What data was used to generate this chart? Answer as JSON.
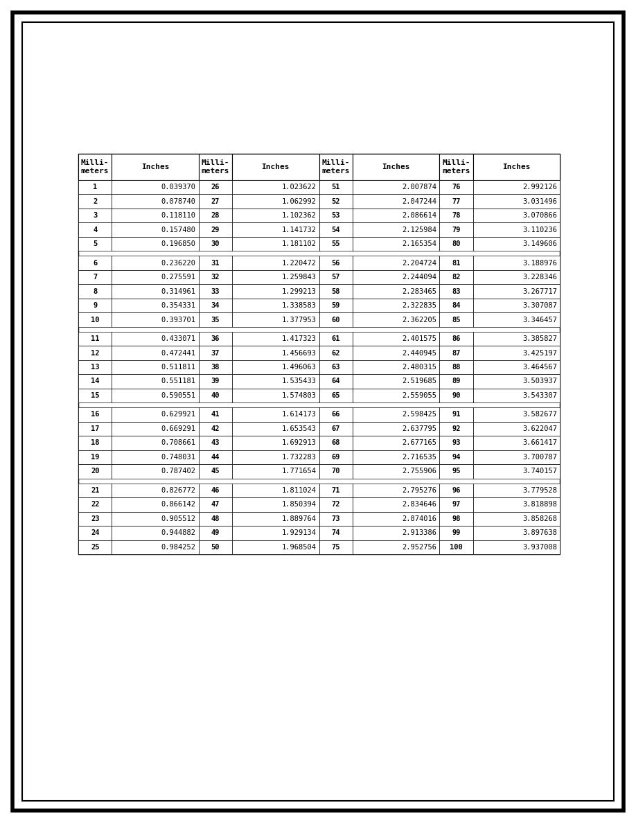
{
  "groups": [
    {
      "mm": [
        1,
        2,
        3,
        4,
        5
      ],
      "inches": [
        "0.039370",
        "0.078740",
        "0.118110",
        "0.157480",
        "0.196850"
      ]
    },
    {
      "mm": [
        6,
        7,
        8,
        9,
        10
      ],
      "inches": [
        "0.236220",
        "0.275591",
        "0.314961",
        "0.354331",
        "0.393701"
      ]
    },
    {
      "mm": [
        11,
        12,
        13,
        14,
        15
      ],
      "inches": [
        "0.433071",
        "0.472441",
        "0.511811",
        "0.551181",
        "0.590551"
      ]
    },
    {
      "mm": [
        16,
        17,
        18,
        19,
        20
      ],
      "inches": [
        "0.629921",
        "0.669291",
        "0.708661",
        "0.748031",
        "0.787402"
      ]
    },
    {
      "mm": [
        21,
        22,
        23,
        24,
        25
      ],
      "inches": [
        "0.826772",
        "0.866142",
        "0.905512",
        "0.944882",
        "0.984252"
      ]
    },
    {
      "mm": [
        26,
        27,
        28,
        29,
        30
      ],
      "inches": [
        "1.023622",
        "1.062992",
        "1.102362",
        "1.141732",
        "1.181102"
      ]
    },
    {
      "mm": [
        31,
        32,
        33,
        34,
        35
      ],
      "inches": [
        "1.220472",
        "1.259843",
        "1.299213",
        "1.338583",
        "1.377953"
      ]
    },
    {
      "mm": [
        36,
        37,
        38,
        39,
        40
      ],
      "inches": [
        "1.417323",
        "1.456693",
        "1.496063",
        "1.535433",
        "1.574803"
      ]
    },
    {
      "mm": [
        41,
        42,
        43,
        44,
        45
      ],
      "inches": [
        "1.614173",
        "1.653543",
        "1.692913",
        "1.732283",
        "1.771654"
      ]
    },
    {
      "mm": [
        46,
        47,
        48,
        49,
        50
      ],
      "inches": [
        "1.811024",
        "1.850394",
        "1.889764",
        "1.929134",
        "1.968504"
      ]
    },
    {
      "mm": [
        51,
        52,
        53,
        54,
        55
      ],
      "inches": [
        "2.007874",
        "2.047244",
        "2.086614",
        "2.125984",
        "2.165354"
      ]
    },
    {
      "mm": [
        56,
        57,
        58,
        59,
        60
      ],
      "inches": [
        "2.204724",
        "2.244094",
        "2.283465",
        "2.322835",
        "2.362205"
      ]
    },
    {
      "mm": [
        61,
        62,
        63,
        64,
        65
      ],
      "inches": [
        "2.401575",
        "2.440945",
        "2.480315",
        "2.519685",
        "2.559055"
      ]
    },
    {
      "mm": [
        66,
        67,
        68,
        69,
        70
      ],
      "inches": [
        "2.598425",
        "2.637795",
        "2.677165",
        "2.716535",
        "2.755906"
      ]
    },
    {
      "mm": [
        71,
        72,
        73,
        74,
        75
      ],
      "inches": [
        "2.795276",
        "2.834646",
        "2.874016",
        "2.913386",
        "2.952756"
      ]
    },
    {
      "mm": [
        76,
        77,
        78,
        79,
        80
      ],
      "inches": [
        "2.992126",
        "3.031496",
        "3.070866",
        "3.110236",
        "3.149606"
      ]
    },
    {
      "mm": [
        81,
        82,
        83,
        84,
        85
      ],
      "inches": [
        "3.188976",
        "3.228346",
        "3.267717",
        "3.307087",
        "3.346457"
      ]
    },
    {
      "mm": [
        86,
        87,
        88,
        89,
        90
      ],
      "inches": [
        "3.385827",
        "3.425197",
        "3.464567",
        "3.503937",
        "3.543307"
      ]
    },
    {
      "mm": [
        91,
        92,
        93,
        94,
        95
      ],
      "inches": [
        "3.582677",
        "3.622047",
        "3.661417",
        "3.700787",
        "3.740157"
      ]
    },
    {
      "mm": [
        96,
        97,
        98,
        99,
        100
      ],
      "inches": [
        "3.779528",
        "3.818898",
        "3.858268",
        "3.897638",
        "3.937008"
      ]
    }
  ],
  "col_headers_line1": [
    "Milli-",
    "Inches",
    "Milli-",
    "Inches",
    "Milli-",
    "Inches",
    "Milli-",
    "Inches"
  ],
  "col_headers_line2": [
    "meters",
    "",
    "meters",
    "",
    "meters",
    "",
    "meters",
    ""
  ],
  "header_bold": [
    true,
    true,
    true,
    true,
    true,
    true,
    true,
    true
  ],
  "bg_color": "#ffffff",
  "outer_lw": 4,
  "inner_lw": 1.5,
  "table_lw": 1.0,
  "header_fontsize": 8,
  "data_fontsize": 7.5,
  "font_family": "monospace"
}
